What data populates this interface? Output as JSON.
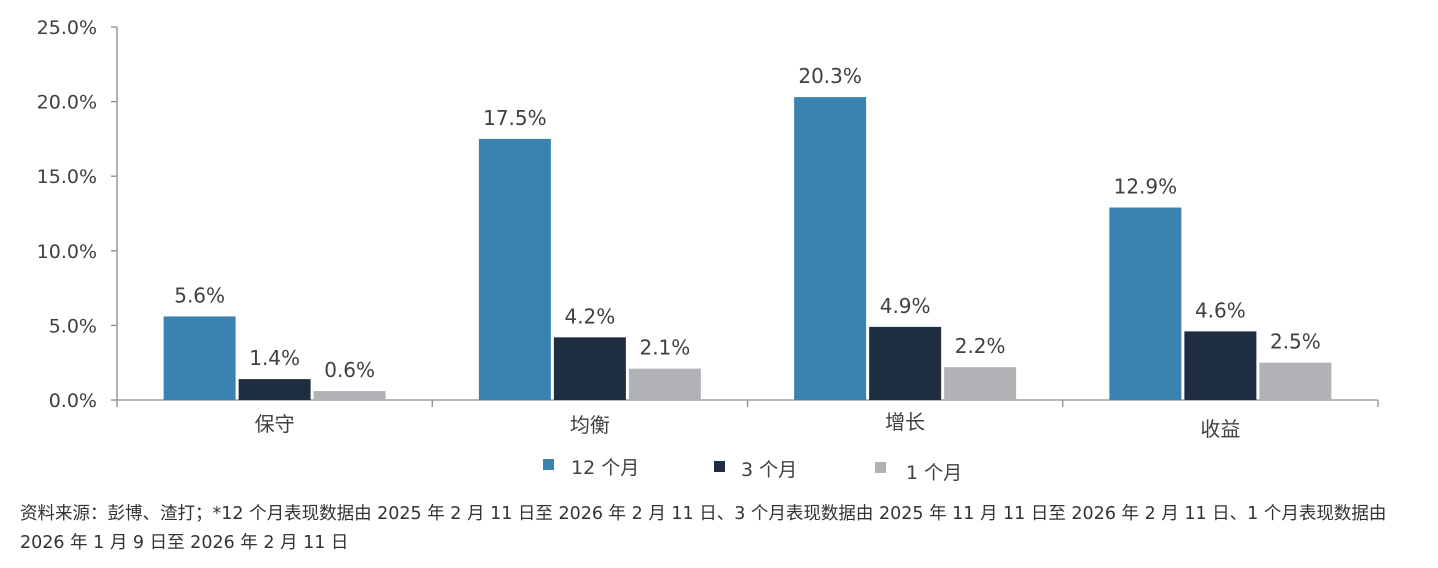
{
  "chart_data": {
    "type": "bar",
    "title": "",
    "xlabel": "",
    "ylabel": "",
    "ylim": [
      0,
      25
    ],
    "yticks": [
      0,
      5,
      10,
      15,
      20,
      25
    ],
    "ytick_labels": [
      "0.0%",
      "5.0%",
      "10.0%",
      "15.0%",
      "20.0%",
      "25.0%"
    ],
    "categories": [
      "保守",
      "均衡",
      "增长",
      "收益"
    ],
    "series": [
      {
        "name": "12 个月",
        "color": "#3A82B0",
        "values": [
          5.6,
          17.5,
          20.3,
          12.9
        ],
        "labels": [
          "5.6%",
          "17.5%",
          "20.3%",
          "12.9%"
        ]
      },
      {
        "name": "3 个月",
        "color": "#1F2D40",
        "values": [
          1.4,
          4.2,
          4.9,
          4.6
        ],
        "labels": [
          "1.4%",
          "4.2%",
          "4.9%",
          "4.6%"
        ]
      },
      {
        "name": "1 个月",
        "color": "#B1B2B6",
        "values": [
          0.6,
          2.1,
          2.2,
          2.5
        ],
        "labels": [
          "0.6%",
          "2.1%",
          "2.2%",
          "2.5%"
        ]
      }
    ],
    "grid": false,
    "legend_position": "bottom"
  },
  "source_note": "资料来源：彭博、渣打；*12 个月表现数据由 2025 年 2 月 11 日至 2026 年 2 月 11 日、3 个月表现数据由 2025 年 11 月 11 日至 2026 年 2 月 11 日、1 个月表现数据由 2026 年 1 月 9 日至 2026 年 2 月 11 日"
}
